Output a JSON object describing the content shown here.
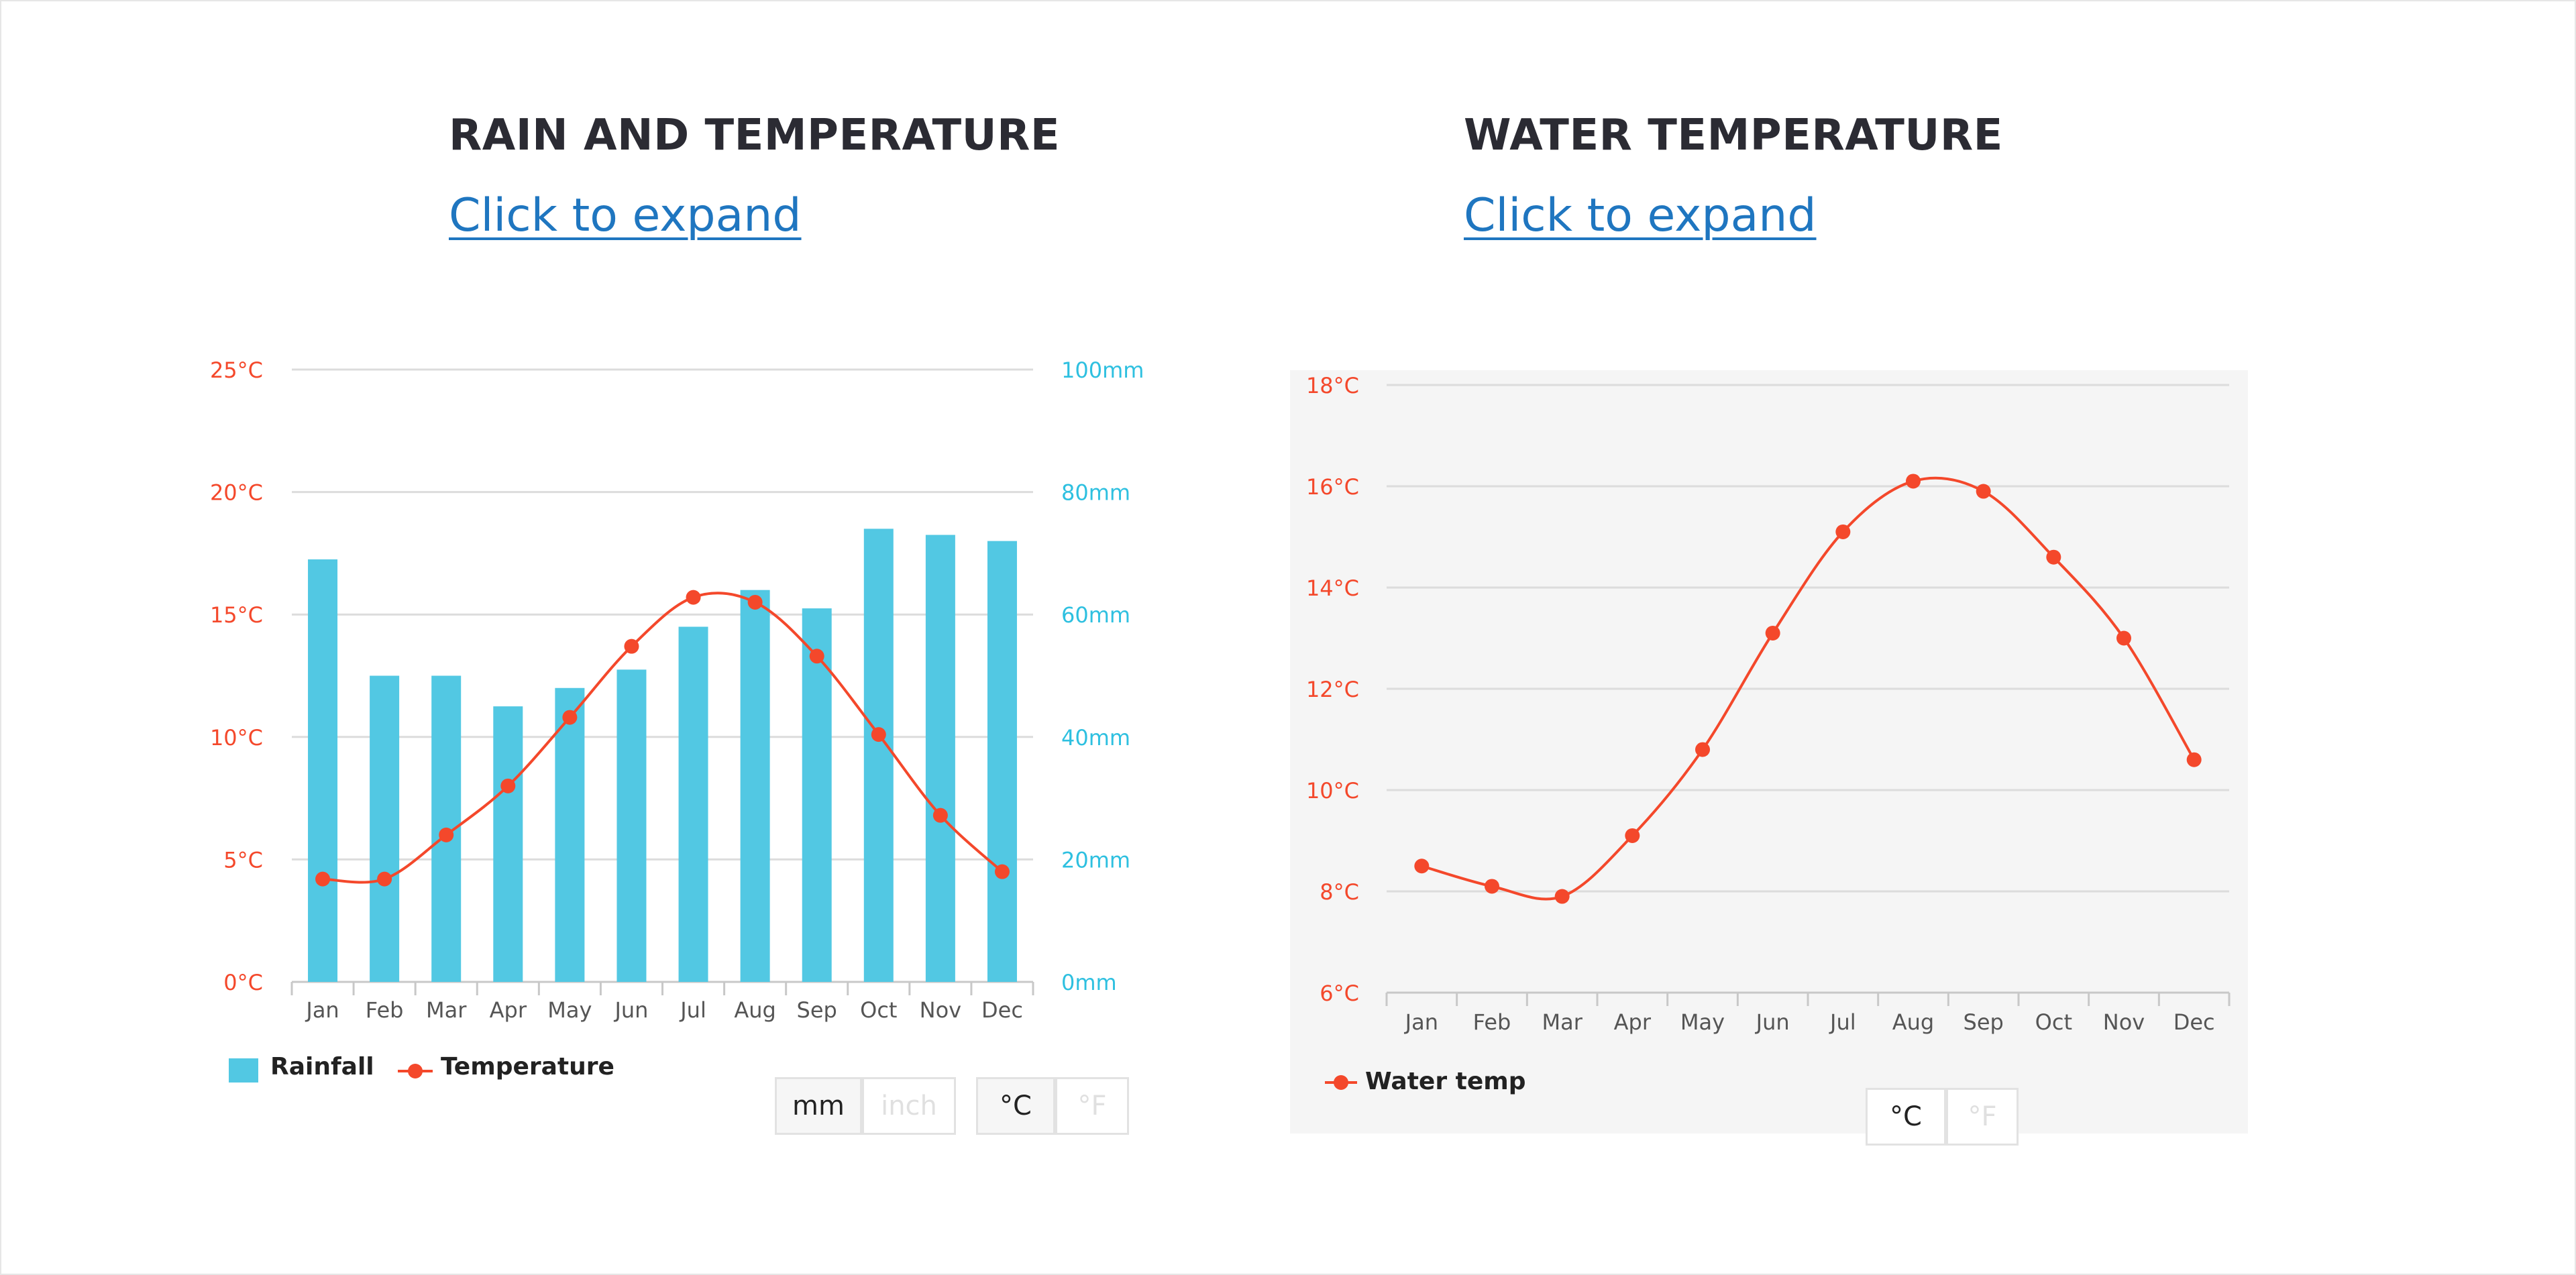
{
  "colors": {
    "title": "#2b2b33",
    "link": "#1f76c0",
    "temperature": "#f4482b",
    "rainfall": "#52c8e3",
    "rain_axis": "#2ec0e0",
    "grid": "#dcdcdc",
    "axis_text": "#555555",
    "panel_bg": "#f5f5f5"
  },
  "left": {
    "title": "RAIN AND TEMPERATURE",
    "expand_link": "Click to expand",
    "legend": {
      "rainfall": "Rainfall",
      "temperature": "Temperature"
    },
    "unit_buttons": {
      "mm": "mm",
      "inch": "inch",
      "celsius": "°C",
      "fahrenheit": "°F"
    }
  },
  "right": {
    "title": "WATER TEMPERATURE",
    "expand_link": "Click to expand",
    "legend": {
      "water_temp": "Water temp"
    },
    "unit_buttons": {
      "celsius": "°C",
      "fahrenheit": "°F"
    }
  },
  "chart_data": [
    {
      "type": "bar",
      "title": "RAIN AND TEMPERATURE",
      "categories": [
        "Jan",
        "Feb",
        "Mar",
        "Apr",
        "May",
        "Jun",
        "Jul",
        "Aug",
        "Sep",
        "Oct",
        "Nov",
        "Dec"
      ],
      "series": [
        {
          "name": "Rainfall",
          "type": "bar",
          "axis": "right",
          "values": [
            69,
            50,
            50,
            45,
            48,
            51,
            58,
            64,
            61,
            74,
            73,
            72
          ]
        },
        {
          "name": "Temperature",
          "type": "line",
          "axis": "left",
          "values": [
            4.2,
            4.2,
            6.0,
            8.0,
            10.8,
            13.7,
            15.7,
            15.5,
            13.3,
            10.1,
            6.8,
            4.5
          ]
        }
      ],
      "y_left": {
        "ticks": [
          "0°C",
          "5°C",
          "10°C",
          "15°C",
          "20°C",
          "25°C"
        ],
        "lim": [
          0,
          25
        ]
      },
      "y_right": {
        "ticks": [
          "0mm",
          "20mm",
          "40mm",
          "60mm",
          "80mm",
          "100mm"
        ],
        "lim": [
          0,
          100
        ]
      },
      "grid": true,
      "legend": "bottom-left"
    },
    {
      "type": "line",
      "title": "WATER TEMPERATURE",
      "categories": [
        "Jan",
        "Feb",
        "Mar",
        "Apr",
        "May",
        "Jun",
        "Jul",
        "Aug",
        "Sep",
        "Oct",
        "Nov",
        "Dec"
      ],
      "series": [
        {
          "name": "Water temp",
          "values": [
            8.5,
            8.1,
            7.9,
            9.1,
            10.8,
            13.1,
            15.1,
            16.1,
            15.9,
            14.6,
            13.0,
            10.6
          ]
        }
      ],
      "y": {
        "ticks": [
          "6°C",
          "8°C",
          "10°C",
          "12°C",
          "14°C",
          "16°C",
          "18°C"
        ],
        "lim": [
          6,
          18
        ]
      },
      "grid": true,
      "legend": "bottom-left"
    }
  ]
}
